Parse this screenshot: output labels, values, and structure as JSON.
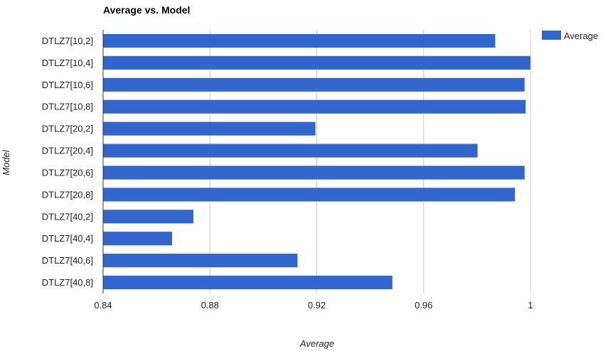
{
  "chart_data": {
    "type": "bar",
    "orientation": "horizontal",
    "title": "Average vs. Model",
    "xlabel": "Average",
    "ylabel": "Model",
    "categories": [
      "DTLZ7[10,2]",
      "DTLZ7[10,4]",
      "DTLZ7[10,6]",
      "DTLZ7[10,8]",
      "DTLZ7[20,2]",
      "DTLZ7[20,4]",
      "DTLZ7[20,6]",
      "DTLZ7[20,8]",
      "DTLZ7[40,2]",
      "DTLZ7[40,4]",
      "DTLZ7[40,6]",
      "DTLZ7[40,8]"
    ],
    "series": [
      {
        "name": "Average",
        "color": "#3366cc",
        "values": [
          0.9868,
          1.0,
          0.9978,
          0.9982,
          0.9195,
          0.9802,
          0.9978,
          0.9942,
          0.8738,
          0.8658,
          0.9128,
          0.9483
        ]
      }
    ],
    "xlim": [
      0.84,
      1.0
    ],
    "xticks": [
      "0.84",
      "0.88",
      "0.92",
      "0.96",
      "1"
    ],
    "xtick_values": [
      0.84,
      0.88,
      0.92,
      0.96,
      1.0
    ],
    "grid": true,
    "legend_position": "right"
  }
}
